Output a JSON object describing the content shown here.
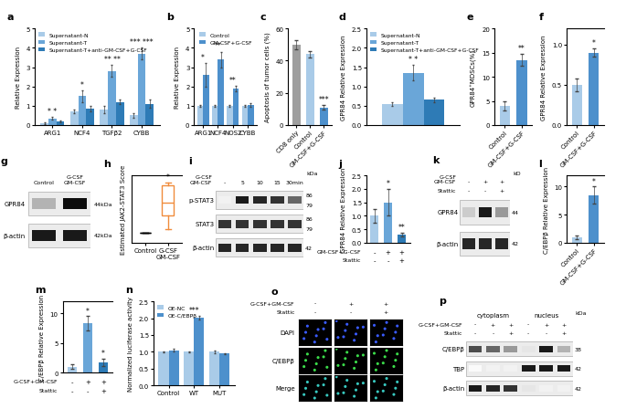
{
  "chart_data": [
    {
      "title": "a",
      "type": "bar",
      "categories": [
        "ARG1",
        "NCF4",
        "TGFβ2",
        "CYBB"
      ],
      "series": [
        {
          "name": "Supernatant-N",
          "color": "#a9cbe8",
          "values": [
            0.1,
            0.7,
            0.8,
            0.5
          ],
          "errors": [
            0.03,
            0.1,
            0.2,
            0.1
          ]
        },
        {
          "name": "Supernatant-T",
          "color": "#6aa6d8",
          "values": [
            0.35,
            1.5,
            2.8,
            3.7
          ],
          "errors": [
            0.08,
            0.3,
            0.3,
            0.3
          ]
        },
        {
          "name": "Supernatant-T+anti-GM-CSF+G-CSF",
          "color": "#2e7bb6",
          "values": [
            0.2,
            0.85,
            1.2,
            1.1
          ],
          "errors": [
            0.05,
            0.15,
            0.1,
            0.2
          ]
        }
      ],
      "ylabel": "Relative Expression",
      "ylim": [
        0,
        5
      ],
      "yticks": [
        0,
        1,
        2,
        3,
        4,
        5
      ],
      "legend": "upper left",
      "annotations": [
        "* *",
        "*",
        "** **",
        "*** ***"
      ]
    },
    {
      "title": "b",
      "type": "bar",
      "categories": [
        "ARG1",
        "NCF4",
        "NOS2",
        "CYBB"
      ],
      "series": [
        {
          "name": "Control",
          "color": "#a9cbe8",
          "values": [
            1,
            1,
            1,
            1
          ],
          "errors": [
            0.05,
            0.05,
            0.05,
            0.05
          ]
        },
        {
          "name": "GM-CSF+G-CSF",
          "color": "#4d90cc",
          "values": [
            2.6,
            3.4,
            1.9,
            1.05
          ],
          "errors": [
            0.6,
            0.4,
            0.15,
            0.1
          ]
        }
      ],
      "ylabel": "Relative Expression",
      "ylim": [
        0,
        5
      ],
      "yticks": [
        0,
        1,
        2,
        3,
        4,
        5
      ],
      "legend": "upper right",
      "annotations": [
        "*",
        "**",
        "**",
        null
      ]
    },
    {
      "title": "c",
      "type": "bar",
      "categories": [
        "CD8 only",
        "Control",
        "GM-CSF+G-CSF"
      ],
      "values": [
        50,
        44,
        11
      ],
      "errors": [
        3,
        2,
        1.5
      ],
      "colors": [
        "#9e9e9e",
        "#a9cbe8",
        "#4d90cc"
      ],
      "ylabel": "Apoptosis of tumor cells (%)",
      "ylim": [
        0,
        60
      ],
      "yticks": [
        0,
        20,
        40,
        60
      ],
      "annotations": [
        null,
        null,
        "***"
      ]
    },
    {
      "title": "d",
      "type": "bar",
      "categories": [
        null
      ],
      "series": [
        {
          "name": "Supernatant-N",
          "color": "#a9cbe8",
          "values": [
            0.55
          ],
          "errors": [
            0.05
          ]
        },
        {
          "name": "Supernatant-T",
          "color": "#6aa6d8",
          "values": [
            1.35
          ],
          "errors": [
            0.2
          ]
        },
        {
          "name": "Supernatant-T+anti-GM-CSF+G-CSF",
          "color": "#2e7bb6",
          "values": [
            0.65
          ],
          "errors": [
            0.05
          ]
        }
      ],
      "ylabel": "GPR84 Relative Expression",
      "ylim": [
        0,
        2.5
      ],
      "yticks": [
        {
          "value": 0,
          "label": "0.0"
        },
        0.5,
        {
          "value": 1,
          "label": "1.0"
        },
        1.5,
        {
          "value": 2,
          "label": "2.0"
        },
        2.5
      ],
      "legend": "upper left",
      "annotations": [
        "* *"
      ]
    },
    {
      "title": "e",
      "type": "bar",
      "categories": [
        "Control",
        "GM-CSF+G-CSF"
      ],
      "values": [
        4,
        13.5
      ],
      "errors": [
        1,
        1.2
      ],
      "colors": [
        "#a9cbe8",
        "#4d90cc"
      ],
      "ylabel": "GPR84⁺MDSCs(%)",
      "ylim": [
        0,
        20
      ],
      "yticks": [
        0,
        5,
        10,
        15,
        20
      ],
      "annotations": [
        null,
        "**"
      ]
    },
    {
      "title": "f",
      "type": "bar",
      "categories": [
        "Control",
        "GM-CSF+G-CSF"
      ],
      "values": [
        0.5,
        0.9
      ],
      "errors": [
        0.08,
        0.05
      ],
      "colors": [
        "#a9cbe8",
        "#4d90cc"
      ],
      "ylabel": "GPR84 Relative Expression",
      "ylim": [
        0,
        1.2
      ],
      "yticks": [
        {
          "value": 0,
          "label": "0.0"
        },
        0.5,
        {
          "value": 1,
          "label": "1.0"
        }
      ],
      "annotations": [
        null,
        "*"
      ]
    },
    {
      "title": "h",
      "type": "box",
      "categories": [
        "Control",
        "G-CSF\nGM-CSF"
      ],
      "boxes": [
        {
          "min": 0.15,
          "q1": 0.15,
          "median": 0.15,
          "q3": 0.15,
          "max": 0.15
        },
        {
          "min": 0.2,
          "q1": 0.4,
          "median": 0.6,
          "q3": 0.85,
          "max": 0.9
        }
      ],
      "colors": [
        "#000000",
        "#f08c3c"
      ],
      "ylabel": "Estimated JAK2-STAT3 Score",
      "ylim": [
        0,
        1
      ],
      "tick_labels": "x",
      "annotations": [
        null,
        "*"
      ]
    },
    {
      "title": "j",
      "type": "bar",
      "categories": [
        null,
        null,
        null
      ],
      "values": [
        1.0,
        1.5,
        0.3
      ],
      "errors": [
        0.25,
        0.5,
        0.08
      ],
      "colors": [
        "#a9cbe8",
        "#6aa6d8",
        "#2e7bb6"
      ],
      "ylabel": "GPR84 Relative Expression",
      "ylim": [
        0,
        2.5
      ],
      "yticks": [
        {
          "value": 0,
          "label": "0.0"
        },
        0.5,
        {
          "value": 1,
          "label": "1.0"
        },
        1.5,
        {
          "value": 2,
          "label": "2.0"
        },
        2.5
      ],
      "conditions": [
        {
          "name": "GM-CSF+G-CSF",
          "marks": [
            "-",
            "+",
            "+"
          ]
        },
        {
          "name": "Stattic",
          "marks": [
            "-",
            "-",
            "+"
          ]
        }
      ],
      "annotations": [
        null,
        "*",
        "**"
      ]
    },
    {
      "title": "l",
      "type": "bar",
      "categories": [
        "Control",
        "GM-CSF+G-CSF"
      ],
      "values": [
        1,
        8.5
      ],
      "errors": [
        0.3,
        1.5
      ],
      "colors": [
        "#a9cbe8",
        "#4d90cc"
      ],
      "ylabel": "C/EBPβ Relative Expression",
      "ylim": [
        0,
        12
      ],
      "yticks": [
        0,
        5,
        10
      ],
      "annotations": [
        null,
        "*"
      ]
    },
    {
      "title": "m",
      "type": "bar",
      "categories": [
        null,
        null,
        null
      ],
      "values": [
        1,
        8.3,
        1.8
      ],
      "errors": [
        0.4,
        1.2,
        0.6
      ],
      "colors": [
        "#a9cbe8",
        "#6aa6d8",
        "#2e7bb6"
      ],
      "ylabel": "C/EBPβ Relative Expression",
      "ylim": [
        0,
        12
      ],
      "yticks": [
        0,
        5,
        10
      ],
      "conditions": [
        {
          "name": "G-CSF+GM-CSF",
          "marks": [
            "-",
            "+",
            "+"
          ]
        },
        {
          "name": "Stattic",
          "marks": [
            "-",
            "-",
            "+"
          ]
        }
      ],
      "annotations": [
        null,
        "*",
        "*"
      ]
    },
    {
      "title": "n",
      "type": "bar",
      "categories": [
        "Control",
        "WT",
        "MUT"
      ],
      "series": [
        {
          "name": "OE-NC",
          "color": "#a9cbe8",
          "values": [
            1,
            1,
            1
          ],
          "errors": [
            0.02,
            0.02,
            0.03
          ]
        },
        {
          "name": "OE-C/EBPβ",
          "color": "#4d90cc",
          "values": [
            1.05,
            2.02,
            0.95
          ],
          "errors": [
            0.03,
            0.05,
            0.02
          ]
        }
      ],
      "ylabel": "Normalized luciferase activity",
      "ylim": [
        0,
        2.5
      ],
      "yticks": [
        {
          "value": 0,
          "label": "0.0"
        },
        0.5,
        {
          "value": 1,
          "label": "1.0"
        },
        1.5,
        {
          "value": 2,
          "label": "2.0"
        },
        2.5
      ],
      "legend": "upper left",
      "annotations": [
        null,
        "***",
        null
      ]
    }
  ],
  "blots": [
    {
      "title": "g",
      "type": "blot",
      "conditions": [
        {
          "marks": [
            "Control",
            "G-CSF\nGM-CSF"
          ]
        }
      ],
      "bands": [
        {
          "name": "GPR84",
          "intensity": [
            0.3,
            0.95
          ],
          "kda": [
            "44kDa"
          ]
        },
        {
          "name": "β-actin",
          "intensity": [
            0.9,
            0.9
          ],
          "kda": [
            "42kDa"
          ]
        }
      ]
    },
    {
      "title": "i",
      "type": "blot",
      "unit": "kDa",
      "conditions": [
        {
          "name": "G-CSF\nGM-CSF",
          "marks": [
            "-",
            "5",
            "10",
            "15",
            "30min"
          ]
        }
      ],
      "bands": [
        {
          "name": "p-STAT3",
          "intensity": [
            0.05,
            0.9,
            0.85,
            0.8,
            0.6
          ],
          "kda": [
            "86",
            "79"
          ]
        },
        {
          "name": "STAT3",
          "intensity": [
            0.8,
            0.8,
            0.8,
            0.8,
            0.8
          ],
          "kda": [
            "86",
            "79"
          ]
        },
        {
          "name": "β-actin",
          "intensity": [
            0.85,
            0.85,
            0.85,
            0.85,
            0.85
          ],
          "kda": [
            "42"
          ]
        }
      ]
    },
    {
      "title": "k",
      "type": "blot",
      "unit": "kD",
      "conditions": [
        {
          "name": "G-CSF\nGM-CSF",
          "marks": [
            "-",
            "+",
            "+"
          ]
        },
        {
          "name": "Stattic",
          "marks": [
            "-",
            "-",
            "+"
          ]
        }
      ],
      "bands": [
        {
          "name": "GPR84",
          "intensity": [
            0.2,
            0.9,
            0.4
          ],
          "kda": [
            "44"
          ]
        },
        {
          "name": "β-actin",
          "intensity": [
            0.85,
            0.85,
            0.85
          ],
          "kda": [
            "42"
          ]
        }
      ]
    },
    {
      "title": "p",
      "type": "blot",
      "unit": "kDa",
      "groups": [
        "cytoplasm",
        "nucleus"
      ],
      "conditions": [
        {
          "name": "G-CSF+GM-CSF",
          "marks": [
            "-",
            "+",
            "+",
            "-",
            "+",
            "+"
          ]
        },
        {
          "name": "Stattic",
          "marks": [
            "-",
            "-",
            "+",
            "-",
            "-",
            "+"
          ]
        }
      ],
      "bands": [
        {
          "name": "C/EBPβ",
          "intensity": [
            0.7,
            0.6,
            0.4,
            0.1,
            0.9,
            0.3
          ],
          "kda": [
            "38"
          ]
        },
        {
          "name": "TBP",
          "intensity": [
            0.02,
            0.05,
            0.05,
            0.9,
            0.9,
            0.9
          ],
          "kda": [
            "42"
          ]
        },
        {
          "name": "β-actin",
          "intensity": [
            0.9,
            0.85,
            0.8,
            0.1,
            0.05,
            0.05
          ],
          "kda": [
            "42"
          ]
        }
      ]
    }
  ],
  "images": [
    {
      "title": "o",
      "type": "image_grid",
      "conditions": [
        {
          "name": "G-CSF+GM-CSF",
          "marks": [
            "-",
            "+",
            "+"
          ]
        },
        {
          "name": "Stattic",
          "marks": [
            "-",
            "-",
            "+"
          ]
        }
      ],
      "rows": [
        "DAPI",
        "C/EBPβ",
        "Merge"
      ],
      "colors": [
        "#3a5bff",
        "#3bdc4a",
        "#38c9c0"
      ]
    }
  ]
}
